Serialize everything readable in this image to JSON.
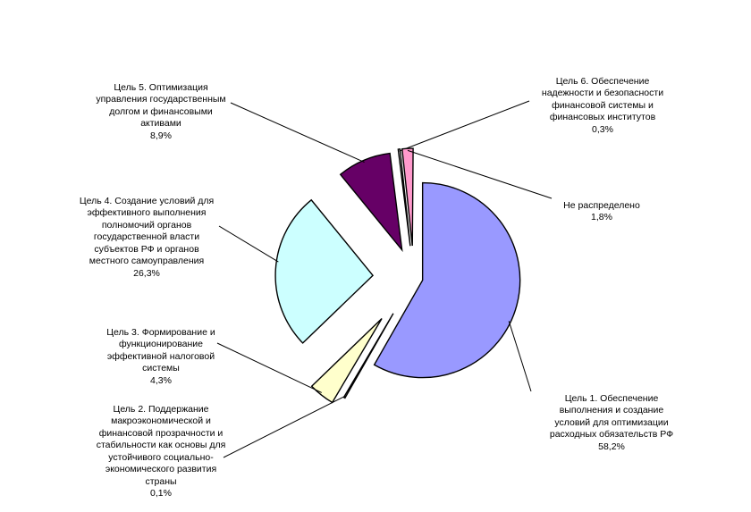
{
  "chart_data": {
    "type": "pie",
    "exploded": true,
    "slices": [
      {
        "name": "Цель 1. Обеспечение\nвыполнения и создание\nусловий для оптимизации\nрасходных обязательств РФ",
        "value": 58.2,
        "label": "58,2%",
        "color": "#9999FF"
      },
      {
        "name": "Цель 2. Поддержание\nмакроэкономической и\nфинансовой прозрачности и\nстабильности как основы для\nустойчивого социально-\nэкономического развития\nстраны",
        "value": 0.1,
        "label": "0,1%",
        "color": "#FFFFFF"
      },
      {
        "name": "Цель 3. Формирование и\nфункционирование\nэффективной налоговой\nсистемы",
        "value": 4.3,
        "label": "4,3%",
        "color": "#FFFFCC"
      },
      {
        "name": "Цель 4. Создание условий для\nэффективного выполнения\nполномочий органов\nгосударственной власти\nсубъектов РФ и органов\nместного самоуправления",
        "value": 26.3,
        "label": "26,3%",
        "color": "#CCFFFF"
      },
      {
        "name": "Цель 5. Оптимизация\nуправления государственным\nдолгом и финансовыми\nактивами",
        "value": 8.9,
        "label": "8,9%",
        "color": "#660066"
      },
      {
        "name": "Цель 6. Обеспечение\nнадежности и безопасности\nфинансовой системы и\nфинансовых институтов",
        "value": 0.3,
        "label": "0,3%",
        "color": "#FFFFFF"
      },
      {
        "name": "Не распределено",
        "value": 1.8,
        "label": "1,8%",
        "color": "#FF99CC"
      }
    ]
  }
}
